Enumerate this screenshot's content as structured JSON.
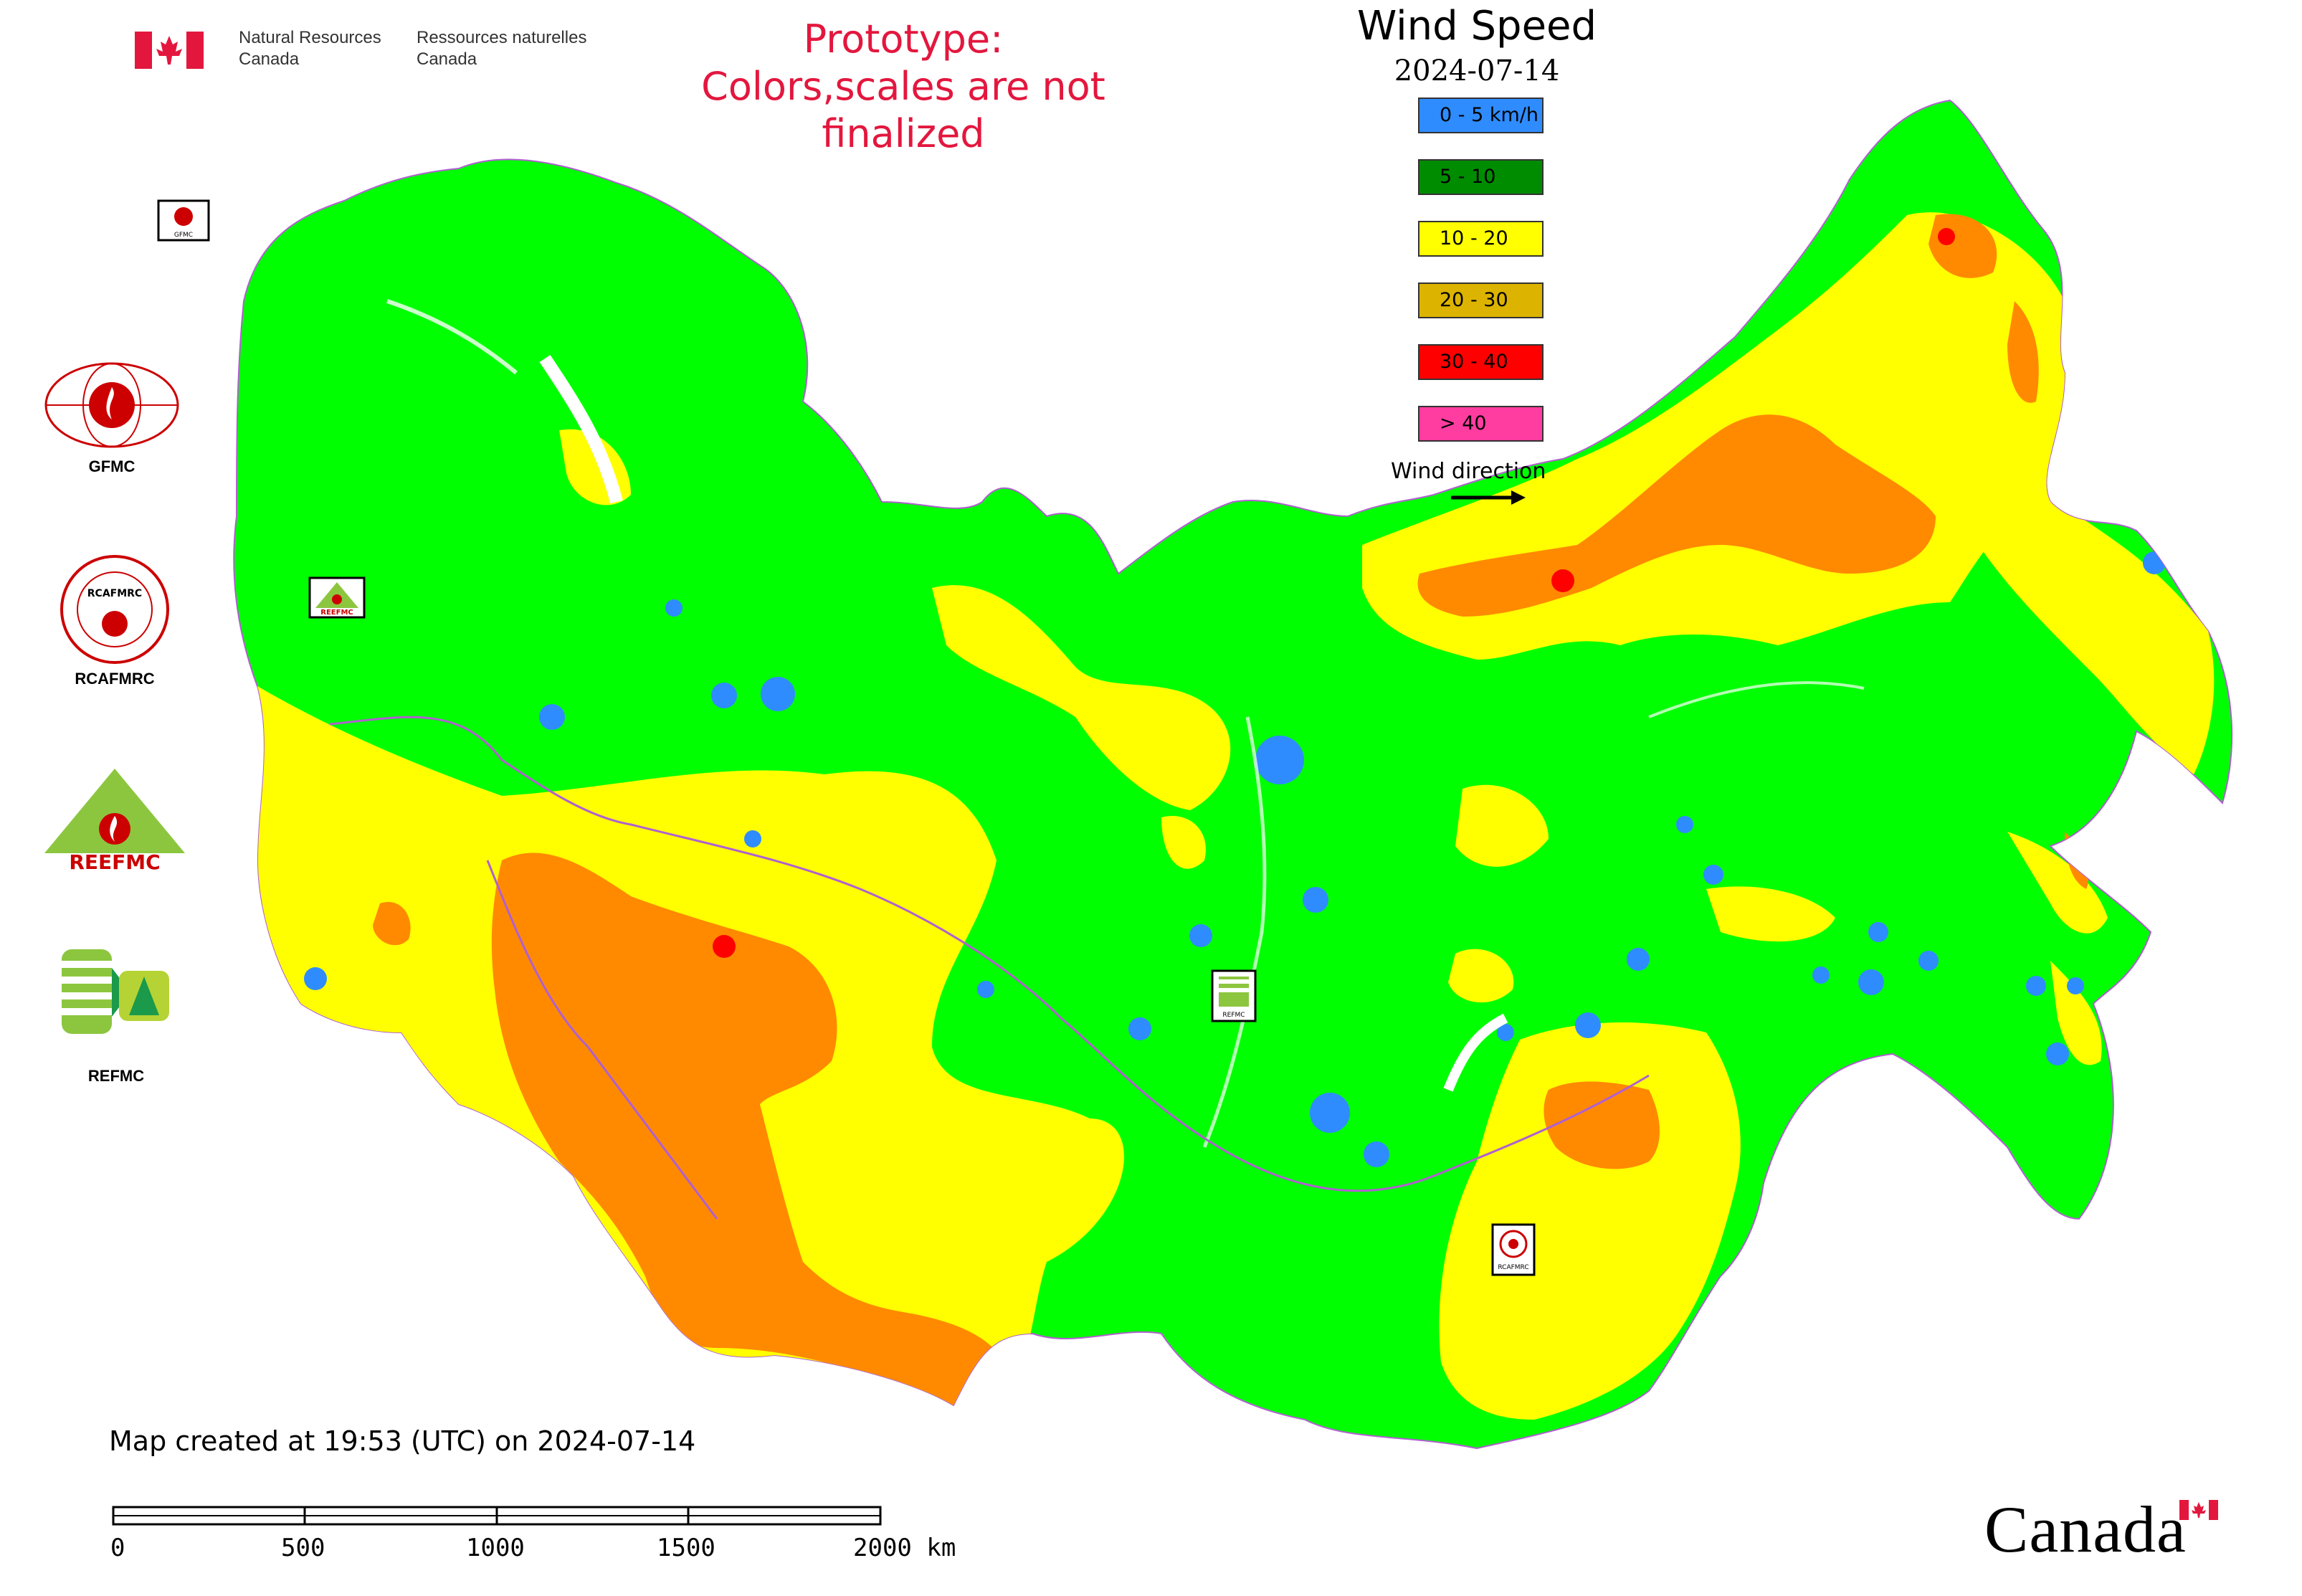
{
  "header": {
    "department_en_1": "Natural Resources",
    "department_en_2": "Canada",
    "department_fr_1": "Ressources naturelles",
    "department_fr_2": "Canada",
    "prototype_line1": "Prototype:",
    "prototype_line2": "Colors,scales are not finalized"
  },
  "legend": {
    "title": "Wind Speed",
    "date": "2024-07-14",
    "items": [
      {
        "label": "0 - 5 km/h",
        "color": "#2f8cff"
      },
      {
        "label": "5 - 10",
        "color": "#008c00"
      },
      {
        "label": "10 - 20",
        "color": "#ffff00"
      },
      {
        "label": "20 - 30",
        "color": "#dcb400"
      },
      {
        "label": "30 - 40",
        "color": "#ff0000"
      },
      {
        "label": "> 40",
        "color": "#ff3ca0"
      }
    ],
    "wind_direction_label": "Wind direction"
  },
  "map_colors": {
    "green": "#00ff00",
    "yellow": "#ffff00",
    "orange": "#ff8a00",
    "red": "#ff0000",
    "blue": "#2f8cff",
    "border": "#b060d0"
  },
  "map_markers": [
    {
      "label": "GFMC",
      "icon": "gfmc-logo-icon"
    },
    {
      "label": "REEFMC",
      "icon": "reefmc-logo-icon"
    },
    {
      "label": "REFMC",
      "icon": "refmc-logo-icon"
    },
    {
      "label": "RCAFMRC",
      "icon": "rcafmrc-logo-icon"
    }
  ],
  "side_logos": [
    {
      "label": "GFMC",
      "icon": "gfmc-logo-icon"
    },
    {
      "label": "RCAFMRC",
      "icon": "rcafmrc-logo-icon"
    },
    {
      "label": "REEFMC",
      "icon": "reefmc-logo-icon"
    },
    {
      "label": "REFMC",
      "icon": "refmc-logo-icon"
    }
  ],
  "footer": {
    "map_created": "Map created at 19:53 (UTC) on 2024-07-14",
    "scale_ticks": [
      "0",
      "500",
      "1000",
      "1500",
      "2000 km"
    ],
    "wordmark": "Canada"
  }
}
